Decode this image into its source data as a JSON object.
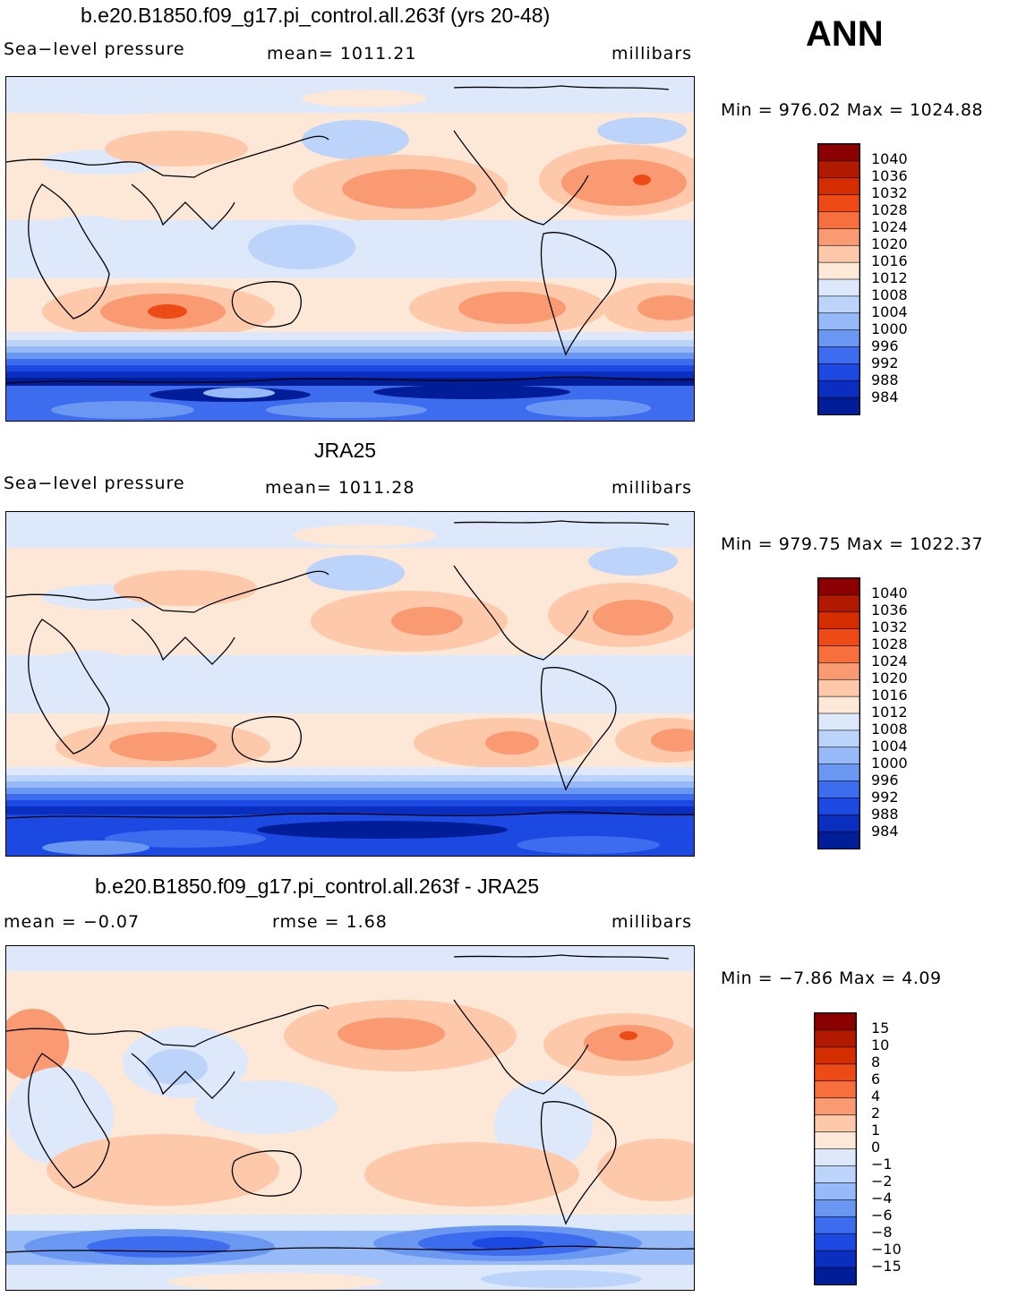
{
  "season": "ANN",
  "panels": [
    {
      "title": "b.e20.B1850.f09_g17.pi_control.all.263f (yrs 20-48)",
      "left_label": "Sea−level pressure",
      "center_label": "mean=  1011.21",
      "right_label": "millibars",
      "minmax": "Min  =  976.02  Max  =  1024.88",
      "colorbar": [
        "1040",
        "1036",
        "1032",
        "1028",
        "1024",
        "1020",
        "1016",
        "1012",
        "1008",
        "1004",
        "1000",
        "996",
        "992",
        "988",
        "984"
      ]
    },
    {
      "title": "JRA25",
      "left_label": "Sea−level pressure",
      "center_label": "mean=  1011.28",
      "right_label": "millibars",
      "minmax": "Min  =  979.75  Max  =  1022.37",
      "colorbar": [
        "1040",
        "1036",
        "1032",
        "1028",
        "1024",
        "1020",
        "1016",
        "1012",
        "1008",
        "1004",
        "1000",
        "996",
        "992",
        "988",
        "984"
      ]
    },
    {
      "title": "b.e20.B1850.f09_g17.pi_control.all.263f - JRA25",
      "left_label": "mean  =    −0.07",
      "center_label": "rmse  =     1.68",
      "right_label": "millibars",
      "minmax": "Min  =    −7.86  Max  =      4.09",
      "colorbar": [
        "15",
        "10",
        "8",
        "6",
        "4",
        "2",
        "1",
        "0",
        "−1",
        "−2",
        "−4",
        "−6",
        "−8",
        "−10",
        "−15"
      ]
    }
  ],
  "chart_data": [
    {
      "type": "heatmap",
      "title": "b.e20.B1850.f09_g17.pi_control.all.263f (yrs 20-48)",
      "variable": "Sea-level pressure",
      "units": "millibars",
      "mean": 1011.21,
      "min": 976.02,
      "max": 1024.88,
      "contour_levels": [
        984,
        988,
        992,
        996,
        1000,
        1004,
        1008,
        1012,
        1016,
        1020,
        1024,
        1028,
        1032,
        1036,
        1040
      ]
    },
    {
      "type": "heatmap",
      "title": "JRA25",
      "variable": "Sea-level pressure",
      "units": "millibars",
      "mean": 1011.28,
      "min": 979.75,
      "max": 1022.37,
      "contour_levels": [
        984,
        988,
        992,
        996,
        1000,
        1004,
        1008,
        1012,
        1016,
        1020,
        1024,
        1028,
        1032,
        1036,
        1040
      ]
    },
    {
      "type": "heatmap",
      "title": "b.e20.B1850.f09_g17.pi_control.all.263f - JRA25",
      "variable": "Sea-level pressure difference",
      "units": "millibars",
      "mean": -0.07,
      "rmse": 1.68,
      "min": -7.86,
      "max": 4.09,
      "contour_levels": [
        -15,
        -10,
        -8,
        -6,
        -4,
        -2,
        -1,
        0,
        1,
        2,
        4,
        6,
        8,
        10,
        15
      ]
    }
  ],
  "colors": {
    "warm_scale": [
      "#8b0000",
      "#b21a00",
      "#d42d00",
      "#ee4a16",
      "#f66f3c",
      "#fa9a72",
      "#fdc9aa",
      "#fde8d8"
    ],
    "cool_scale": [
      "#dde9fb",
      "#bcd4fa",
      "#96b9f7",
      "#6a97f2",
      "#3d6cee",
      "#1b49e2",
      "#0a2fc0",
      "#021d98",
      "#010e6e"
    ]
  }
}
